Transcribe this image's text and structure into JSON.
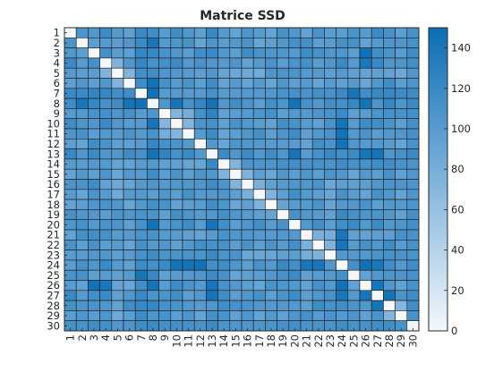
{
  "chart_data": {
    "type": "heatmap",
    "title": "Matrice SSD",
    "xlabel": "",
    "ylabel": "",
    "x_tick_labels": [
      "1",
      "2",
      "3",
      "4",
      "5",
      "6",
      "7",
      "8",
      "9",
      "10",
      "11",
      "12",
      "13",
      "14",
      "15",
      "16",
      "17",
      "18",
      "19",
      "20",
      "21",
      "22",
      "23",
      "24",
      "25",
      "26",
      "27",
      "28",
      "29",
      "30"
    ],
    "y_tick_labels": [
      "1",
      "2",
      "3",
      "4",
      "5",
      "6",
      "7",
      "8",
      "9",
      "10",
      "11",
      "12",
      "13",
      "14",
      "15",
      "16",
      "17",
      "18",
      "19",
      "20",
      "21",
      "22",
      "23",
      "24",
      "25",
      "26",
      "27",
      "28",
      "29",
      "30"
    ],
    "colorbar": {
      "range": [
        0,
        150
      ],
      "tick_values": [
        0,
        20,
        40,
        60,
        80,
        100,
        120,
        140
      ],
      "tick_labels": [
        "0",
        "20",
        "40",
        "60",
        "80",
        "100",
        "120",
        "140"
      ],
      "colors": {
        "low": "#f4f8fc",
        "high": "#0b6eb5"
      }
    },
    "grid": false,
    "notes": "30x30 symmetric matrix, zero diagonal; values estimated from cell colors",
    "pattern": {
      "row_means": [
        105,
        103,
        112,
        110,
        92,
        97,
        115,
        122,
        108,
        108,
        105,
        102,
        122,
        98,
        95,
        97,
        96,
        98,
        106,
        110,
        101,
        104,
        100,
        114,
        104,
        103,
        112,
        112,
        101,
        98
      ],
      "spike_pairs": [
        [
          2,
          8
        ],
        [
          6,
          8
        ],
        [
          7,
          8
        ],
        [
          8,
          10
        ],
        [
          8,
          13
        ],
        [
          8,
          20
        ],
        [
          8,
          26
        ],
        [
          10,
          24
        ],
        [
          11,
          24
        ],
        [
          12,
          24
        ],
        [
          13,
          20
        ],
        [
          13,
          26
        ],
        [
          13,
          27
        ],
        [
          3,
          26
        ],
        [
          4,
          26
        ],
        [
          7,
          25
        ],
        [
          21,
          24
        ],
        [
          22,
          24
        ],
        [
          24,
          26
        ],
        [
          24,
          27
        ],
        [
          26,
          27
        ],
        [
          27,
          28
        ]
      ],
      "dip_pairs": [
        [
          9,
          10
        ],
        [
          9,
          11
        ],
        [
          10,
          11
        ],
        [
          21,
          22
        ],
        [
          21,
          23
        ],
        [
          22,
          23
        ],
        [
          14,
          15
        ],
        [
          15,
          16
        ],
        [
          16,
          17
        ],
        [
          17,
          18
        ],
        [
          4,
          5
        ],
        [
          5,
          6
        ],
        [
          28,
          29
        ]
      ]
    }
  }
}
